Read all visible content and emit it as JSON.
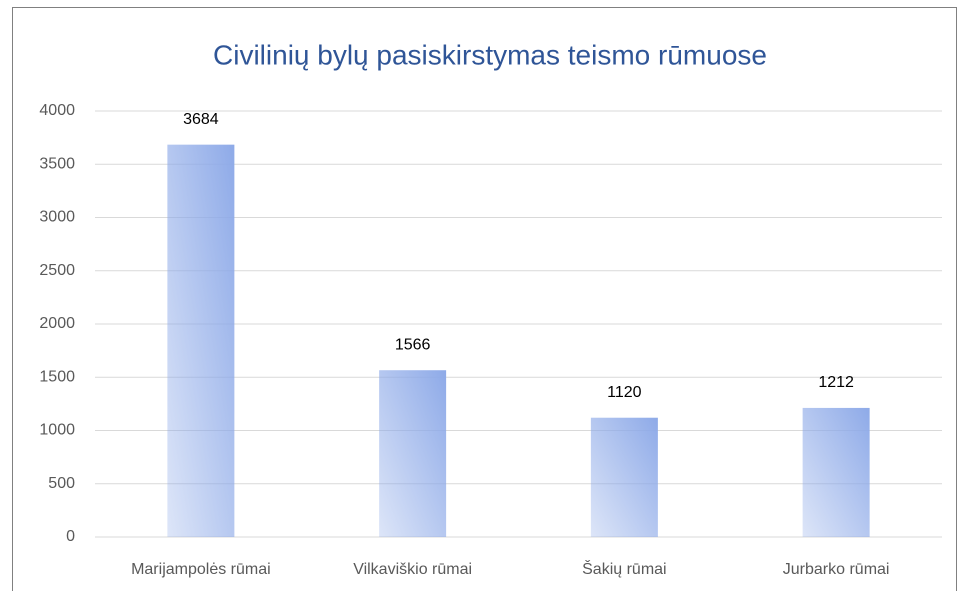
{
  "chart_data": {
    "type": "bar",
    "title": "Civilinių bylų pasiskirstymas teismo rūmuose",
    "categories": [
      "Marijampolės rūmai",
      "Vilkaviškio rūmai",
      "Šakių rūmai",
      "Jurbarko rūmai"
    ],
    "values": [
      3684,
      1566,
      1120,
      1212
    ],
    "color": "#8eaae8",
    "ylim": [
      0,
      4000
    ],
    "yticks": [
      0,
      500,
      1000,
      1500,
      2000,
      2500,
      3000,
      3500,
      4000
    ],
    "grid": true
  }
}
